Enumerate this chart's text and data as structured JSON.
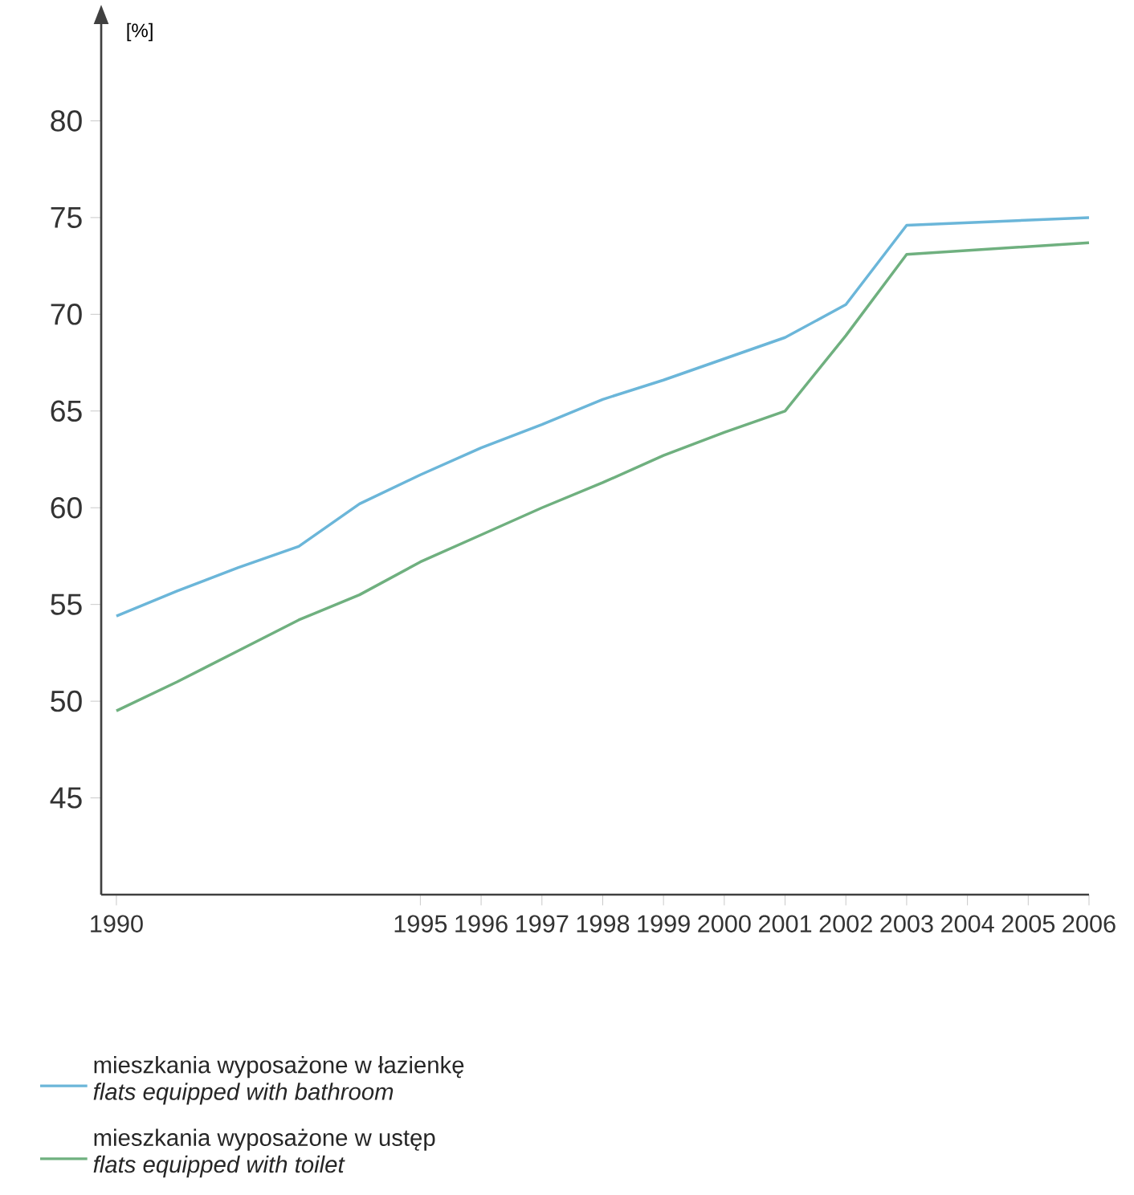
{
  "chart_data": {
    "type": "line",
    "ylabel": "[%]",
    "x": [
      1990,
      1991,
      1992,
      1993,
      1994,
      1995,
      1996,
      1997,
      1998,
      1999,
      2000,
      2001,
      2002,
      2003,
      2006
    ],
    "series": [
      {
        "name": "mieszkania wyposażone w łazienkę\n*flats equipped with bathroom*",
        "color": "#6bb6d9",
        "values": [
          54.4,
          55.7,
          56.9,
          58.0,
          60.2,
          61.7,
          63.1,
          64.3,
          65.6,
          66.6,
          67.7,
          68.8,
          70.5,
          74.6,
          75.0
        ]
      },
      {
        "name": "mieszkania wyposażone w ustęp\n*flats equipped with toilet*",
        "color": "#6fb07f",
        "values": [
          49.5,
          51.0,
          52.6,
          54.2,
          55.5,
          57.2,
          58.6,
          60.0,
          61.3,
          62.7,
          63.9,
          65.0,
          68.9,
          73.1,
          73.7
        ]
      }
    ],
    "xlim": [
      1989.75,
      2006
    ],
    "ylim": [
      40,
      85
    ],
    "xticks": [
      1990,
      1995,
      1996,
      1997,
      1998,
      1999,
      2000,
      2001,
      2002,
      2003,
      2004,
      2005,
      2006
    ],
    "yticks": [
      45,
      50,
      55,
      60,
      65,
      70,
      75,
      80
    ],
    "grid": false,
    "legend": "bottom",
    "marker": "none",
    "line_style": "solid"
  }
}
